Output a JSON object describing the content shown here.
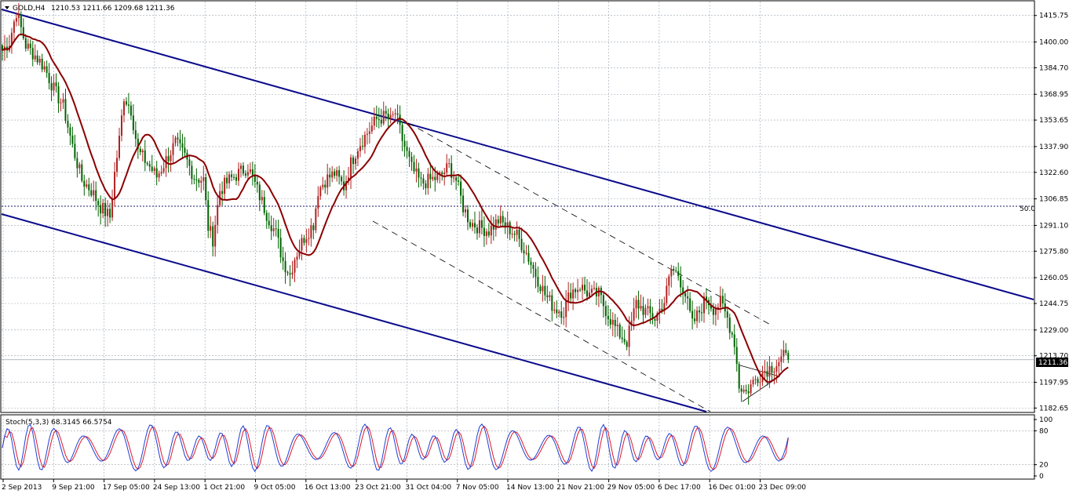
{
  "header": {
    "symbol": "GOLD,H4",
    "ohlc": "1210.53 1211.66 1209.68 1211.36"
  },
  "chart_data": {
    "type": "candlestick",
    "price_axis": {
      "ticks": [
        "1415.75",
        "1400.00",
        "1384.70",
        "1368.95",
        "1353.65",
        "1337.90",
        "1322.60",
        "1306.85",
        "1291.10",
        "1275.80",
        "1260.05",
        "1244.75",
        "1229.00",
        "1213.70",
        "1197.95",
        "1182.65"
      ],
      "range": [
        1180,
        1425
      ],
      "current_price": "1211.36"
    },
    "time_axis": {
      "labels": [
        "2 Sep 2013",
        "9 Sep 21:00",
        "17 Sep 05:00",
        "24 Sep 13:00",
        "1 Oct 21:00",
        "9 Oct 05:00",
        "16 Oct 13:00",
        "23 Oct 21:00",
        "31 Oct 04:00",
        "7 Nov 05:00",
        "14 Nov 13:00",
        "21 Nov 21:00",
        "29 Nov 05:00",
        "6 Dec 17:00",
        "16 Dec 01:00",
        "23 Dec 09:00"
      ]
    },
    "price_keypoints": [
      [
        0,
        1395
      ],
      [
        3,
        1400
      ],
      [
        6,
        1418
      ],
      [
        10,
        1398
      ],
      [
        14,
        1392
      ],
      [
        18,
        1385
      ],
      [
        22,
        1372
      ],
      [
        26,
        1362
      ],
      [
        30,
        1338
      ],
      [
        34,
        1318
      ],
      [
        38,
        1312
      ],
      [
        42,
        1302
      ],
      [
        46,
        1296
      ],
      [
        48,
        1322
      ],
      [
        50,
        1342
      ],
      [
        52,
        1368
      ],
      [
        55,
        1360
      ],
      [
        58,
        1335
      ],
      [
        62,
        1328
      ],
      [
        66,
        1320
      ],
      [
        70,
        1330
      ],
      [
        74,
        1340
      ],
      [
        78,
        1332
      ],
      [
        82,
        1320
      ],
      [
        86,
        1318
      ],
      [
        88,
        1290
      ],
      [
        90,
        1283
      ],
      [
        93,
        1312
      ],
      [
        97,
        1318
      ],
      [
        101,
        1322
      ],
      [
        105,
        1326
      ],
      [
        109,
        1312
      ],
      [
        113,
        1298
      ],
      [
        117,
        1286
      ],
      [
        120,
        1270
      ],
      [
        123,
        1262
      ],
      [
        125,
        1272
      ],
      [
        129,
        1284
      ],
      [
        133,
        1292
      ],
      [
        135,
        1312
      ],
      [
        138,
        1318
      ],
      [
        142,
        1322
      ],
      [
        146,
        1314
      ],
      [
        149,
        1328
      ],
      [
        152,
        1338
      ],
      [
        156,
        1346
      ],
      [
        160,
        1354
      ],
      [
        164,
        1356
      ],
      [
        166,
        1353
      ],
      [
        168,
        1358
      ],
      [
        171,
        1342
      ],
      [
        175,
        1325
      ],
      [
        179,
        1316
      ],
      [
        183,
        1318
      ],
      [
        187,
        1320
      ],
      [
        191,
        1326
      ],
      [
        194,
        1318
      ],
      [
        197,
        1302
      ],
      [
        200,
        1293
      ],
      [
        204,
        1290
      ],
      [
        208,
        1288
      ],
      [
        212,
        1294
      ],
      [
        216,
        1290
      ],
      [
        220,
        1285
      ],
      [
        224,
        1275
      ],
      [
        228,
        1262
      ],
      [
        232,
        1250
      ],
      [
        236,
        1242
      ],
      [
        240,
        1240
      ],
      [
        243,
        1252
      ],
      [
        247,
        1255
      ],
      [
        251,
        1250
      ],
      [
        255,
        1250
      ],
      [
        259,
        1238
      ],
      [
        263,
        1228
      ],
      [
        267,
        1222
      ],
      [
        271,
        1245
      ],
      [
        275,
        1240
      ],
      [
        279,
        1236
      ],
      [
        283,
        1246
      ],
      [
        286,
        1265
      ],
      [
        289,
        1262
      ],
      [
        292,
        1250
      ],
      [
        295,
        1232
      ],
      [
        298,
        1240
      ],
      [
        301,
        1248
      ],
      [
        304,
        1242
      ],
      [
        307,
        1245
      ],
      [
        310,
        1236
      ],
      [
        313,
        1222
      ],
      [
        315,
        1196
      ],
      [
        318,
        1192
      ],
      [
        322,
        1200
      ],
      [
        326,
        1205
      ],
      [
        330,
        1208
      ],
      [
        334,
        1213
      ],
      [
        336,
        1211
      ]
    ],
    "stochastic": {
      "label": "Stoch(5,3,3) 68.3145 66.5754",
      "main": 68.3145,
      "signal": 66.5754,
      "levels": [
        "100",
        "80",
        "20",
        "0"
      ]
    },
    "horizontal_level": {
      "label": "50.0",
      "price": 1302.5
    },
    "moving_average_color": "#8b0000",
    "channel_color": "#0a0a8c",
    "up_color": "#b22222",
    "down_color": "#006400",
    "stoch_main_color": "#1e3fd6",
    "stoch_signal_color": "#e0182a"
  }
}
